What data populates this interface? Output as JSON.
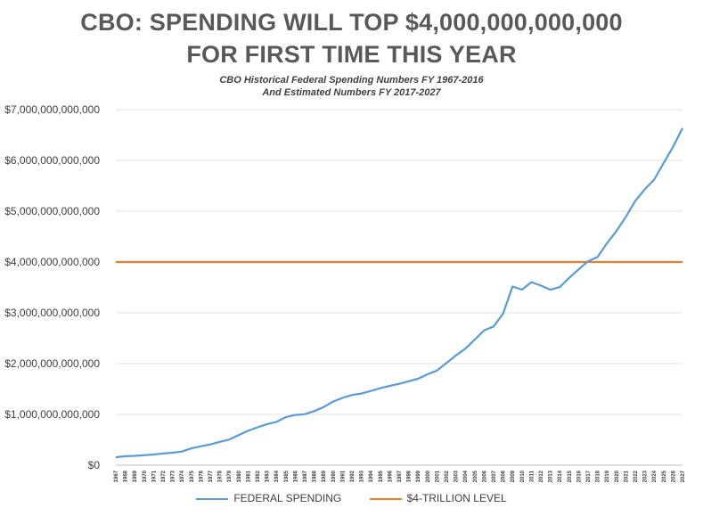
{
  "chart_data": {
    "type": "line",
    "title": "CBO: SPENDING WILL TOP $4,000,000,000,000",
    "title_line2": "FOR FIRST TIME THIS YEAR",
    "subtitle": "CBO Historical Federal Spending Numbers FY 1967-2016",
    "subtitle_line2": "And Estimated Numbers FY 2017-2027",
    "xlabel": "",
    "ylabel": "",
    "ylim": [
      0,
      7000000000000
    ],
    "yticks": [
      0,
      1000000000000,
      2000000000000,
      3000000000000,
      4000000000000,
      5000000000000,
      6000000000000,
      7000000000000
    ],
    "ytick_labels": [
      "$0",
      "$1,000,000,000,000",
      "$2,000,000,000,000",
      "$3,000,000,000,000",
      "$4,000,000,000,000",
      "$5,000,000,000,000",
      "$6,000,000,000,000",
      "$7,000,000,000,000"
    ],
    "grid": "horizontal",
    "legend_position": "bottom",
    "x": [
      "1967",
      "1968",
      "1969",
      "1970",
      "1971",
      "1972",
      "1973",
      "1974",
      "1975",
      "1976",
      "1977",
      "1978",
      "1979",
      "1980",
      "1981",
      "1982",
      "1983",
      "1984",
      "1985",
      "1986",
      "1987",
      "1988",
      "1989",
      "1990",
      "1991",
      "1992",
      "1993",
      "1994",
      "1995",
      "1996",
      "1997",
      "1998",
      "1999",
      "2000",
      "2001",
      "2002",
      "2003",
      "2004",
      "2005",
      "2006",
      "2007",
      "2008",
      "2009",
      "2010",
      "2011",
      "2012",
      "2013",
      "2014",
      "2015",
      "2016",
      "2017",
      "2018",
      "2019",
      "2020",
      "2021",
      "2022",
      "2023",
      "2024",
      "2025",
      "2026",
      "2027"
    ],
    "series": [
      {
        "name": "FEDERAL SPENDING",
        "color": "#5b9bd5",
        "values": [
          157000000000,
          178000000000,
          184000000000,
          196000000000,
          210000000000,
          231000000000,
          246000000000,
          269000000000,
          332000000000,
          372000000000,
          409000000000,
          459000000000,
          504000000000,
          591000000000,
          678000000000,
          746000000000,
          808000000000,
          852000000000,
          946000000000,
          990000000000,
          1004000000000,
          1065000000000,
          1144000000000,
          1253000000000,
          1324000000000,
          1382000000000,
          1410000000000,
          1462000000000,
          1516000000000,
          1561000000000,
          1601000000000,
          1652000000000,
          1702000000000,
          1789000000000,
          1863000000000,
          2011000000000,
          2160000000000,
          2293000000000,
          2472000000000,
          2655000000000,
          2729000000000,
          2983000000000,
          3518000000000,
          3457000000000,
          3603000000000,
          3537000000000,
          3455000000000,
          3506000000000,
          3688000000000,
          3854000000000,
          4015000000000,
          4096000000000,
          4370000000000,
          4608000000000,
          4889000000000,
          5203000000000,
          5429000000000,
          5622000000000,
          5947000000000,
          6266000000000,
          6636000000000
        ]
      },
      {
        "name": "$4-TRILLION LEVEL",
        "color": "#ed7d31",
        "values": [
          4000000000000,
          4000000000000,
          4000000000000,
          4000000000000,
          4000000000000,
          4000000000000,
          4000000000000,
          4000000000000,
          4000000000000,
          4000000000000,
          4000000000000,
          4000000000000,
          4000000000000,
          4000000000000,
          4000000000000,
          4000000000000,
          4000000000000,
          4000000000000,
          4000000000000,
          4000000000000,
          4000000000000,
          4000000000000,
          4000000000000,
          4000000000000,
          4000000000000,
          4000000000000,
          4000000000000,
          4000000000000,
          4000000000000,
          4000000000000,
          4000000000000,
          4000000000000,
          4000000000000,
          4000000000000,
          4000000000000,
          4000000000000,
          4000000000000,
          4000000000000,
          4000000000000,
          4000000000000,
          4000000000000,
          4000000000000,
          4000000000000,
          4000000000000,
          4000000000000,
          4000000000000,
          4000000000000,
          4000000000000,
          4000000000000,
          4000000000000,
          4000000000000,
          4000000000000,
          4000000000000,
          4000000000000,
          4000000000000,
          4000000000000,
          4000000000000,
          4000000000000,
          4000000000000,
          4000000000000,
          4000000000000
        ]
      }
    ]
  }
}
